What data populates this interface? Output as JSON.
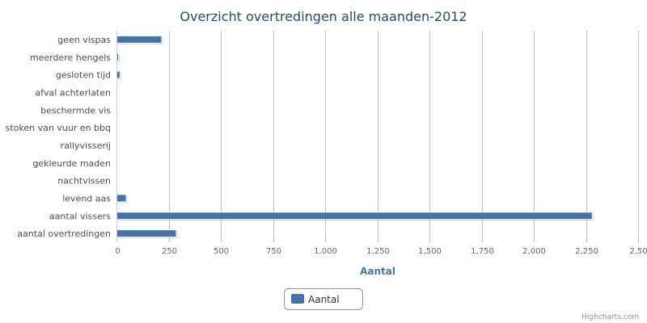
{
  "chart_data": {
    "type": "bar",
    "orientation": "horizontal",
    "title": "Overzicht overtredingen alle maanden-2012",
    "xlabel": "Aantal",
    "categories": [
      "geen vispas",
      "meerdere hengels",
      "gesloten tijd",
      "afval achterlaten",
      "beschermde vis",
      "stoken van vuur en bbq",
      "rallyvisserij",
      "gekleurde maden",
      "nachtvissen",
      "levend aas",
      "aantal vissers",
      "aantal overtredingen"
    ],
    "series": [
      {
        "name": "Aantal",
        "color": "#4572a7",
        "values": [
          215,
          8,
          15,
          0,
          0,
          0,
          0,
          0,
          0,
          45,
          2280,
          285
        ]
      }
    ],
    "xlim": [
      0,
      2500
    ],
    "ticks": [
      "0",
      "250",
      "500",
      "750",
      "1,000",
      "1,250",
      "1,500",
      "1,750",
      "2,000",
      "2,250",
      "2,50"
    ],
    "grid": true,
    "legend_position": "bottom-center"
  },
  "credits": "Highcharts.com"
}
